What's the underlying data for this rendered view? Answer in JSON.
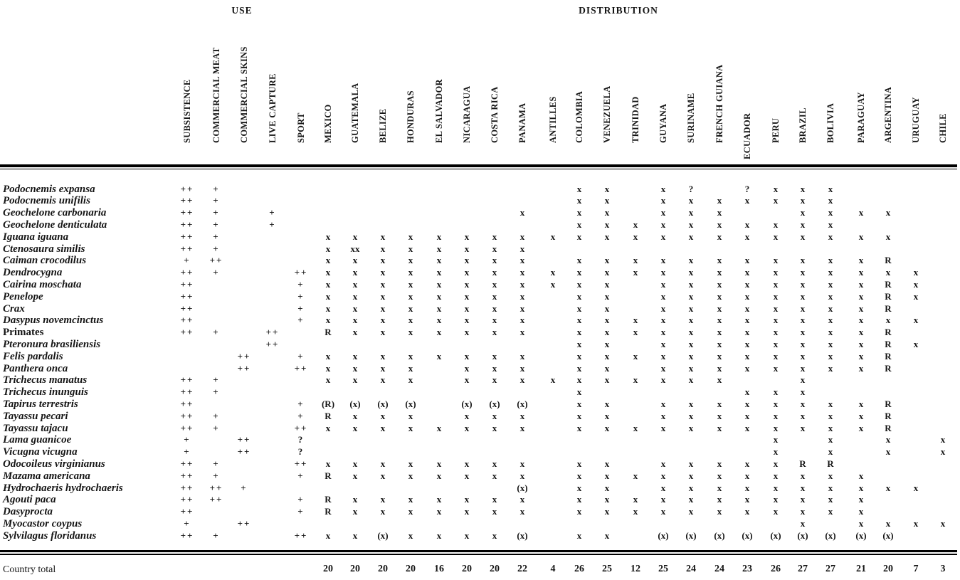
{
  "header": {
    "use_label": "USE",
    "distribution_label": "DISTRIBUTION"
  },
  "use_columns": [
    "SUBSISTENCE",
    "COMMERCIAL MEAT",
    "COMMERCIAL SKINS",
    "LIVE CAPTURE",
    "SPORT"
  ],
  "countries": [
    "MEXICO",
    "GUATEMALA",
    "BELIZE",
    "HONDURAS",
    "EL SALVADOR",
    "NICARAGUA",
    "COSTA RICA",
    "PANAMA",
    "ANTILLES",
    "COLOMBIA",
    "VENEZUELA",
    "TRINIDAD",
    "GUYANA",
    "SURINAME",
    "FRENCH GUIANA",
    "ECUADOR",
    "PERU",
    "BRAZIL",
    "BOLIVIA",
    "PARAGUAY",
    "ARGENTINA",
    "URUGUAY",
    "CHILE"
  ],
  "rows": [
    {
      "species": "Podocnemis expansa",
      "italic": true,
      "use": [
        "++",
        "+",
        "",
        "",
        ""
      ],
      "dist": [
        "",
        "",
        "",
        "",
        "",
        "",
        "",
        "",
        "",
        "x",
        "x",
        "",
        "x",
        "?",
        "",
        "?",
        "x",
        "x",
        "x",
        "",
        "",
        "",
        ""
      ]
    },
    {
      "species": "Podocnemis unifilis",
      "italic": true,
      "use": [
        "++",
        "+",
        "",
        "",
        ""
      ],
      "dist": [
        "",
        "",
        "",
        "",
        "",
        "",
        "",
        "",
        "",
        "x",
        "x",
        "",
        "x",
        "x",
        "x",
        "x",
        "x",
        "x",
        "x",
        "",
        "",
        "",
        ""
      ]
    },
    {
      "species": "Geochelone carbonaria",
      "italic": true,
      "use": [
        "++",
        "+",
        "",
        "+",
        ""
      ],
      "dist": [
        "",
        "",
        "",
        "",
        "",
        "",
        "",
        "x",
        "",
        "x",
        "x",
        "",
        "x",
        "x",
        "x",
        "",
        "",
        "x",
        "x",
        "x",
        "x",
        "",
        ""
      ]
    },
    {
      "species": "Geochelone denticulata",
      "italic": true,
      "use": [
        "++",
        "+",
        "",
        "+",
        ""
      ],
      "dist": [
        "",
        "",
        "",
        "",
        "",
        "",
        "",
        "",
        "",
        "x",
        "x",
        "x",
        "x",
        "x",
        "x",
        "x",
        "x",
        "x",
        "x",
        "",
        "",
        "",
        ""
      ]
    },
    {
      "species": "Iguana iguana",
      "italic": true,
      "use": [
        "++",
        "+",
        "",
        "",
        ""
      ],
      "dist": [
        "x",
        "x",
        "x",
        "x",
        "x",
        "x",
        "x",
        "x",
        "x",
        "x",
        "x",
        "x",
        "x",
        "x",
        "x",
        "x",
        "x",
        "x",
        "x",
        "x",
        "x",
        "",
        ""
      ]
    },
    {
      "species": "Ctenosaura similis",
      "italic": true,
      "use": [
        "++",
        "+",
        "",
        "",
        ""
      ],
      "dist": [
        "x",
        "xx",
        "x",
        "x",
        "x",
        "x",
        "x",
        "x",
        "",
        "",
        "",
        "",
        "",
        "",
        "",
        "",
        "",
        "",
        "",
        "",
        "",
        "",
        ""
      ]
    },
    {
      "species": "Caiman crocodilus",
      "italic": true,
      "use": [
        "+",
        "++",
        "",
        "",
        ""
      ],
      "dist": [
        "x",
        "x",
        "x",
        "x",
        "x",
        "x",
        "x",
        "x",
        "",
        "x",
        "x",
        "x",
        "x",
        "x",
        "x",
        "x",
        "x",
        "x",
        "x",
        "x",
        "R",
        "",
        ""
      ]
    },
    {
      "species": "Dendrocygna",
      "italic": true,
      "use": [
        "++",
        "+",
        "",
        "",
        "++"
      ],
      "dist": [
        "x",
        "x",
        "x",
        "x",
        "x",
        "x",
        "x",
        "x",
        "x",
        "x",
        "x",
        "x",
        "x",
        "x",
        "x",
        "x",
        "x",
        "x",
        "x",
        "x",
        "x",
        "x",
        ""
      ]
    },
    {
      "species": "Cairina moschata",
      "italic": true,
      "use": [
        "++",
        "",
        "",
        "",
        "+"
      ],
      "dist": [
        "x",
        "x",
        "x",
        "x",
        "x",
        "x",
        "x",
        "x",
        "x",
        "x",
        "x",
        "",
        "x",
        "x",
        "x",
        "x",
        "x",
        "x",
        "x",
        "x",
        "R",
        "x",
        ""
      ]
    },
    {
      "species": "Penelope",
      "italic": true,
      "use": [
        "++",
        "",
        "",
        "",
        "+"
      ],
      "dist": [
        "x",
        "x",
        "x",
        "x",
        "x",
        "x",
        "x",
        "x",
        "",
        "x",
        "x",
        "",
        "x",
        "x",
        "x",
        "x",
        "x",
        "x",
        "x",
        "x",
        "R",
        "x",
        ""
      ]
    },
    {
      "species": "Crax",
      "italic": true,
      "use": [
        "++",
        "",
        "",
        "",
        "+"
      ],
      "dist": [
        "x",
        "x",
        "x",
        "x",
        "x",
        "x",
        "x",
        "x",
        "",
        "x",
        "x",
        "",
        "x",
        "x",
        "x",
        "x",
        "x",
        "x",
        "x",
        "x",
        "R",
        "",
        ""
      ]
    },
    {
      "species": "Dasypus novemcinctus",
      "italic": true,
      "use": [
        "++",
        "",
        "",
        "",
        "+"
      ],
      "dist": [
        "x",
        "x",
        "x",
        "x",
        "x",
        "x",
        "x",
        "x",
        "",
        "x",
        "x",
        "x",
        "x",
        "x",
        "x",
        "x",
        "x",
        "x",
        "x",
        "x",
        "x",
        "x",
        ""
      ]
    },
    {
      "species": "Primates",
      "italic": false,
      "use": [
        "++",
        "+",
        "",
        "++",
        ""
      ],
      "dist": [
        "R",
        "x",
        "x",
        "x",
        "x",
        "x",
        "x",
        "x",
        "",
        "x",
        "x",
        "x",
        "x",
        "x",
        "x",
        "x",
        "x",
        "x",
        "x",
        "x",
        "R",
        "",
        ""
      ]
    },
    {
      "species": "Pteronura brasiliensis",
      "italic": true,
      "use": [
        "",
        "",
        "",
        "++",
        ""
      ],
      "dist": [
        "",
        "",
        "",
        "",
        "",
        "",
        "",
        "",
        "",
        "x",
        "x",
        "",
        "x",
        "x",
        "x",
        "x",
        "x",
        "x",
        "x",
        "x",
        "R",
        "x",
        ""
      ]
    },
    {
      "species": "Felis pardalis",
      "italic": true,
      "use": [
        "",
        "",
        "++",
        "",
        "+"
      ],
      "dist": [
        "x",
        "x",
        "x",
        "x",
        "x",
        "x",
        "x",
        "x",
        "",
        "x",
        "x",
        "x",
        "x",
        "x",
        "x",
        "x",
        "x",
        "x",
        "x",
        "x",
        "R",
        "",
        ""
      ]
    },
    {
      "species": "Panthera onca",
      "italic": true,
      "use": [
        "",
        "",
        "++",
        "",
        "++"
      ],
      "dist": [
        "x",
        "x",
        "x",
        "x",
        "",
        "x",
        "x",
        "x",
        "",
        "x",
        "x",
        "",
        "x",
        "x",
        "x",
        "x",
        "x",
        "x",
        "x",
        "x",
        "R",
        "",
        ""
      ]
    },
    {
      "species": "Trichecus manatus",
      "italic": true,
      "use": [
        "++",
        "+",
        "",
        "",
        ""
      ],
      "dist": [
        "x",
        "x",
        "x",
        "x",
        "",
        "x",
        "x",
        "x",
        "x",
        "x",
        "x",
        "x",
        "x",
        "x",
        "x",
        "",
        "",
        "x",
        "",
        "",
        "",
        "",
        ""
      ]
    },
    {
      "species": "Trichecus inunguis",
      "italic": true,
      "use": [
        "++",
        "+",
        "",
        "",
        ""
      ],
      "dist": [
        "",
        "",
        "",
        "",
        "",
        "",
        "",
        "",
        "",
        "x",
        "",
        "",
        "",
        "",
        "",
        "x",
        "x",
        "x",
        "",
        "",
        "",
        "",
        ""
      ]
    },
    {
      "species": "Tapirus terrestris",
      "italic": true,
      "use": [
        "++",
        "",
        "",
        "",
        "+"
      ],
      "dist": [
        "(R)",
        "(x)",
        "(x)",
        "(x)",
        "",
        "(x)",
        "(x)",
        "(x)",
        "",
        "x",
        "x",
        "",
        "x",
        "x",
        "x",
        "x",
        "x",
        "x",
        "x",
        "x",
        "R",
        "",
        ""
      ]
    },
    {
      "species": "Tayassu pecari",
      "italic": true,
      "use": [
        "++",
        "+",
        "",
        "",
        "+"
      ],
      "dist": [
        "R",
        "x",
        "x",
        "x",
        "",
        "x",
        "x",
        "x",
        "",
        "x",
        "x",
        "",
        "x",
        "x",
        "x",
        "x",
        "x",
        "x",
        "x",
        "x",
        "R",
        "",
        ""
      ]
    },
    {
      "species": "Tayassu tajacu",
      "italic": true,
      "use": [
        "++",
        "+",
        "",
        "",
        "++"
      ],
      "dist": [
        "x",
        "x",
        "x",
        "x",
        "x",
        "x",
        "x",
        "x",
        "",
        "x",
        "x",
        "x",
        "x",
        "x",
        "x",
        "x",
        "x",
        "x",
        "x",
        "x",
        "R",
        "",
        ""
      ]
    },
    {
      "species": "Lama guanicoe",
      "italic": true,
      "use": [
        "+",
        "",
        "++",
        "",
        "?"
      ],
      "dist": [
        "",
        "",
        "",
        "",
        "",
        "",
        "",
        "",
        "",
        "",
        "",
        "",
        "",
        "",
        "",
        "",
        "x",
        "",
        "x",
        "",
        "x",
        "",
        "x"
      ]
    },
    {
      "species": "Vicugna vicugna",
      "italic": true,
      "use": [
        "+",
        "",
        "++",
        "",
        "?"
      ],
      "dist": [
        "",
        "",
        "",
        "",
        "",
        "",
        "",
        "",
        "",
        "",
        "",
        "",
        "",
        "",
        "",
        "",
        "x",
        "",
        "x",
        "",
        "x",
        "",
        "x"
      ]
    },
    {
      "species": "Odocoileus virginianus",
      "italic": true,
      "use": [
        "++",
        "+",
        "",
        "",
        "++"
      ],
      "dist": [
        "x",
        "x",
        "x",
        "x",
        "x",
        "x",
        "x",
        "x",
        "",
        "x",
        "x",
        "",
        "x",
        "x",
        "x",
        "x",
        "x",
        "R",
        "R",
        "",
        "",
        "",
        ""
      ]
    },
    {
      "species": "Mazama americana",
      "italic": true,
      "use": [
        "++",
        "+",
        "",
        "",
        "+"
      ],
      "dist": [
        "R",
        "x",
        "x",
        "x",
        "x",
        "x",
        "x",
        "x",
        "",
        "x",
        "x",
        "x",
        "x",
        "x",
        "x",
        "x",
        "x",
        "x",
        "x",
        "x",
        "",
        "",
        ""
      ]
    },
    {
      "species": "Hydrochaeris hydrochaeris",
      "italic": true,
      "use": [
        "++",
        "++",
        "+",
        "",
        ""
      ],
      "dist": [
        "",
        "",
        "",
        "",
        "",
        "",
        "",
        "(x)",
        "",
        "x",
        "x",
        "",
        "x",
        "x",
        "x",
        "x",
        "x",
        "x",
        "x",
        "x",
        "x",
        "x",
        ""
      ]
    },
    {
      "species": "Agouti paca",
      "italic": true,
      "use": [
        "++",
        "++",
        "",
        "",
        "+"
      ],
      "dist": [
        "R",
        "x",
        "x",
        "x",
        "x",
        "x",
        "x",
        "x",
        "",
        "x",
        "x",
        "x",
        "x",
        "x",
        "x",
        "x",
        "x",
        "x",
        "x",
        "x",
        "",
        "",
        ""
      ]
    },
    {
      "species": "Dasyprocta",
      "italic": true,
      "use": [
        "++",
        "",
        "",
        "",
        "+"
      ],
      "dist": [
        "R",
        "x",
        "x",
        "x",
        "x",
        "x",
        "x",
        "x",
        "",
        "x",
        "x",
        "x",
        "x",
        "x",
        "x",
        "x",
        "x",
        "x",
        "x",
        "x",
        "",
        "",
        ""
      ]
    },
    {
      "species": "Myocastor coypus",
      "italic": true,
      "use": [
        "+",
        "",
        "++",
        "",
        ""
      ],
      "dist": [
        "",
        "",
        "",
        "",
        "",
        "",
        "",
        "",
        "",
        "",
        "",
        "",
        "",
        "",
        "",
        "",
        "",
        "x",
        "",
        "x",
        "x",
        "x",
        "x"
      ]
    },
    {
      "species": "Sylvilagus floridanus",
      "italic": true,
      "use": [
        "++",
        "+",
        "",
        "",
        "++"
      ],
      "dist": [
        "x",
        "x",
        "(x)",
        "x",
        "x",
        "x",
        "x",
        "(x)",
        "",
        "x",
        "x",
        "",
        "(x)",
        "(x)",
        "(x)",
        "(x)",
        "(x)",
        "(x)",
        "(x)",
        "(x)",
        "(x)",
        "",
        ""
      ]
    }
  ],
  "footer": {
    "label": "Country total",
    "totals": [
      "20",
      "20",
      "20",
      "20",
      "16",
      "20",
      "20",
      "22",
      "4",
      "26",
      "25",
      "12",
      "25",
      "24",
      "24",
      "23",
      "26",
      "27",
      "27",
      "21",
      "20",
      "7",
      "3"
    ]
  }
}
